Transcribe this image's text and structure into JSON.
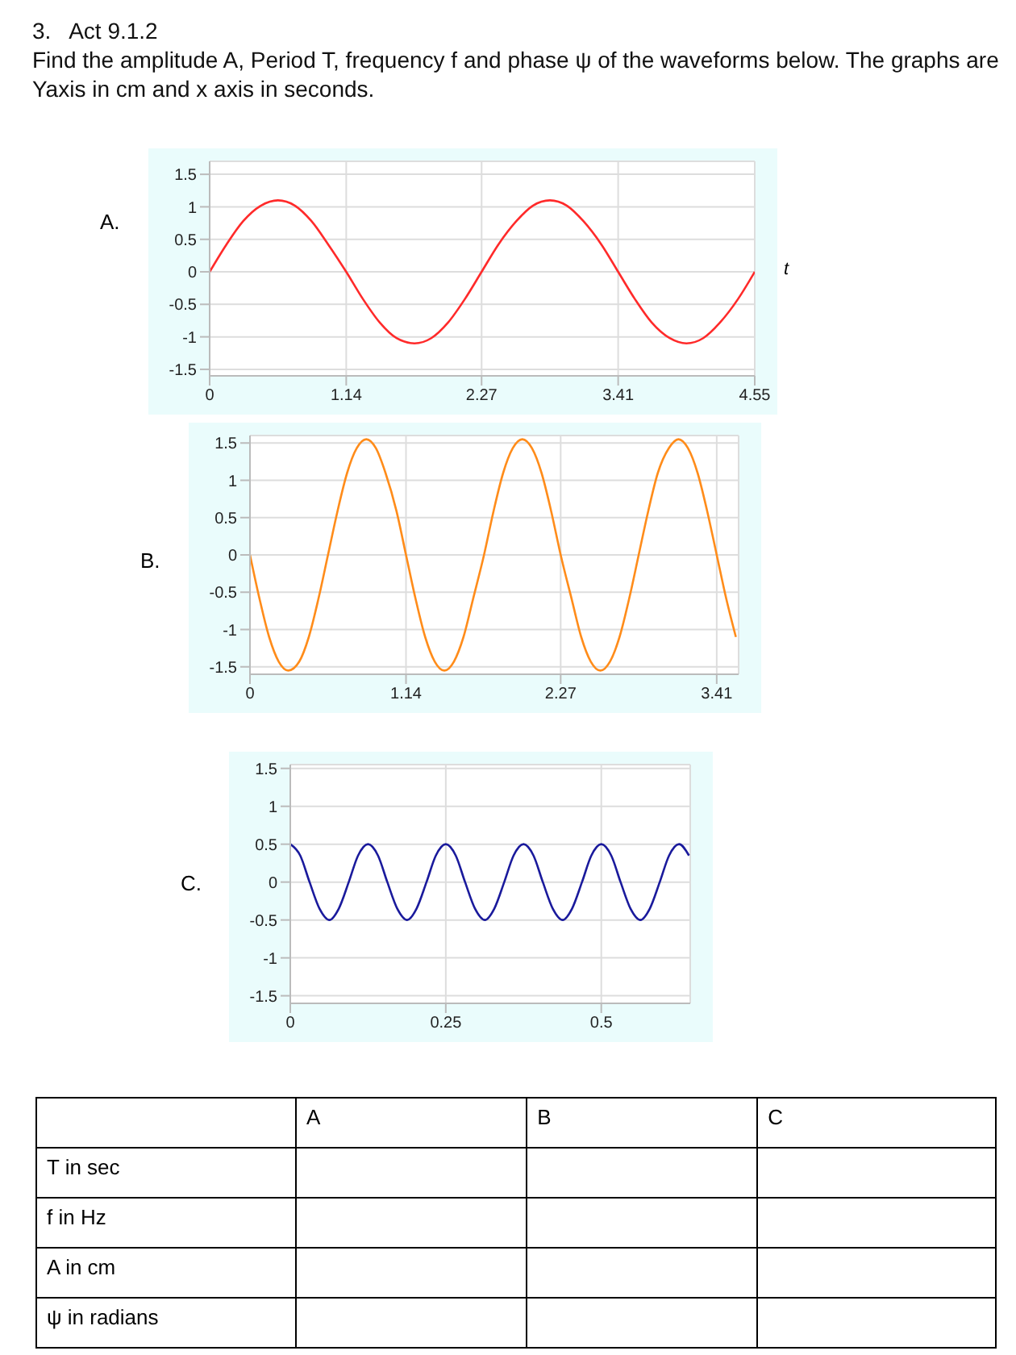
{
  "chart_data": [
    {
      "type": "other",
      "title": "3.   Act 9.1.2",
      "subtitle": "Find the amplitude A, Period T, frequency f and phase ψ of the waveforms below. The graphs are Yaxis in cm and x axis in seconds."
    },
    {
      "type": "line",
      "title": "A.",
      "xlabel": "t",
      "xlim": [
        0,
        4.55
      ],
      "xticks": [
        0,
        1.14,
        2.27,
        3.41,
        4.55
      ],
      "ylim": [
        -1.6,
        1.7
      ],
      "yticks": [
        -1.5,
        -1,
        -0.5,
        0,
        0.5,
        1,
        1.5
      ],
      "grid": true,
      "marker": "none",
      "series": [
        {
          "color": "#ff2a2a",
          "x": [
            0,
            0.14,
            0.28,
            0.43,
            0.57,
            0.71,
            0.85,
            0.99,
            1.14,
            1.28,
            1.42,
            1.56,
            1.71,
            1.85,
            1.99,
            2.13,
            2.27,
            2.41,
            2.56,
            2.7,
            2.84,
            2.98,
            3.12,
            3.27,
            3.41,
            3.55,
            3.69,
            3.84,
            3.98,
            4.12,
            4.26,
            4.41,
            4.55
          ],
          "values": [
            0,
            0.42,
            0.78,
            1.02,
            1.1,
            1.02,
            0.78,
            0.42,
            0,
            -0.42,
            -0.78,
            -1.02,
            -1.1,
            -1.02,
            -0.78,
            -0.42,
            0,
            0.42,
            0.78,
            1.02,
            1.1,
            1.02,
            0.78,
            0.42,
            0,
            -0.42,
            -0.78,
            -1.02,
            -1.1,
            -1.02,
            -0.78,
            -0.42,
            0
          ]
        }
      ]
    },
    {
      "type": "line",
      "title": "B.",
      "xlim": [
        0,
        3.57
      ],
      "xticks": [
        0,
        1.14,
        2.27,
        3.41
      ],
      "ylim": [
        -1.6,
        1.6
      ],
      "yticks": [
        -1.5,
        -1,
        -0.5,
        0,
        0.5,
        1,
        1.5
      ],
      "grid": true,
      "marker": "none",
      "series": [
        {
          "color": "#ff8c1a",
          "x": [
            0,
            0.07,
            0.14,
            0.21,
            0.28,
            0.36,
            0.43,
            0.5,
            0.57,
            0.64,
            0.71,
            0.78,
            0.85,
            0.92,
            0.99,
            1.07,
            1.14,
            1.21,
            1.28,
            1.35,
            1.42,
            1.49,
            1.56,
            1.63,
            1.71,
            1.78,
            1.85,
            1.92,
            1.99,
            2.06,
            2.13,
            2.2,
            2.27,
            2.35,
            2.42,
            2.49,
            2.56,
            2.63,
            2.7,
            2.77,
            2.84,
            2.91,
            2.98,
            3.06,
            3.13,
            3.2,
            3.27,
            3.34,
            3.41,
            3.48,
            3.55
          ],
          "values": [
            0,
            -0.59,
            -1.1,
            -1.43,
            -1.55,
            -1.43,
            -1.1,
            -0.59,
            0,
            0.59,
            1.1,
            1.43,
            1.55,
            1.43,
            1.1,
            0.59,
            0,
            -0.59,
            -1.1,
            -1.43,
            -1.55,
            -1.43,
            -1.1,
            -0.59,
            0,
            0.59,
            1.1,
            1.43,
            1.55,
            1.43,
            1.1,
            0.59,
            0,
            -0.59,
            -1.1,
            -1.43,
            -1.55,
            -1.43,
            -1.1,
            -0.59,
            0,
            0.59,
            1.1,
            1.43,
            1.55,
            1.43,
            1.1,
            0.59,
            0,
            -0.59,
            -1.1
          ]
        }
      ]
    },
    {
      "type": "line",
      "title": "C.",
      "xlim": [
        0,
        0.643
      ],
      "xticks": [
        0,
        0.25,
        0.5
      ],
      "ylim": [
        -1.6,
        1.55
      ],
      "yticks": [
        -1.5,
        -1,
        -0.5,
        0,
        0.5,
        1,
        1.5
      ],
      "grid": true,
      "marker": "none",
      "series": [
        {
          "color": "#1a1a9c",
          "x": [
            0,
            0.016,
            0.031,
            0.047,
            0.063,
            0.078,
            0.094,
            0.109,
            0.125,
            0.141,
            0.156,
            0.172,
            0.188,
            0.203,
            0.219,
            0.234,
            0.25,
            0.266,
            0.281,
            0.297,
            0.313,
            0.328,
            0.344,
            0.359,
            0.375,
            0.391,
            0.406,
            0.422,
            0.438,
            0.453,
            0.469,
            0.484,
            0.5,
            0.516,
            0.531,
            0.547,
            0.563,
            0.578,
            0.594,
            0.609,
            0.625,
            0.641
          ],
          "values": [
            0.5,
            0.35,
            0,
            -0.35,
            -0.5,
            -0.35,
            0,
            0.35,
            0.5,
            0.35,
            0,
            -0.35,
            -0.5,
            -0.35,
            0,
            0.35,
            0.5,
            0.35,
            0,
            -0.35,
            -0.5,
            -0.35,
            0,
            0.35,
            0.5,
            0.35,
            0,
            -0.35,
            -0.5,
            -0.35,
            0,
            0.35,
            0.5,
            0.35,
            0,
            -0.35,
            -0.5,
            -0.35,
            0,
            0.35,
            0.5,
            0.35
          ]
        }
      ]
    },
    {
      "type": "other",
      "annotations": [
        "A",
        "B",
        "C",
        "T in sec",
        "f in Hz",
        "A in cm",
        "ψ in radians"
      ]
    }
  ]
}
